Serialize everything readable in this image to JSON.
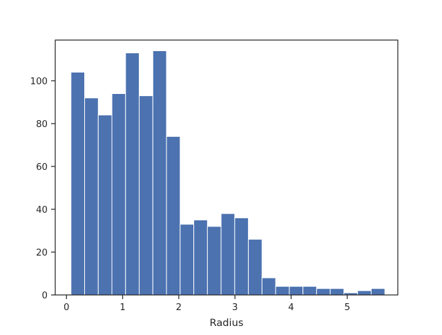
{
  "chart_data": {
    "type": "bar",
    "xlabel": "Radius",
    "ylabel": "",
    "title": "",
    "xlim": [
      -0.2,
      5.9
    ],
    "ylim": [
      0,
      119
    ],
    "grid": false,
    "bar_color": "#4c72b0",
    "bin_edges": [
      0.08,
      0.323,
      0.566,
      0.809,
      1.052,
      1.295,
      1.538,
      1.781,
      2.024,
      2.267,
      2.51,
      2.753,
      2.996,
      3.239,
      3.482,
      3.725,
      3.968,
      4.211,
      4.454,
      4.697,
      4.94,
      5.183,
      5.426,
      5.67
    ],
    "counts": [
      104,
      92,
      84,
      94,
      113,
      93,
      114,
      74,
      33,
      35,
      32,
      38,
      36,
      26,
      8,
      4,
      4,
      4,
      3,
      3,
      1,
      2,
      3
    ],
    "x_ticks": [
      0,
      1,
      2,
      3,
      4,
      5
    ],
    "x_tick_labels": [
      "0",
      "1",
      "2",
      "3",
      "4",
      "5"
    ],
    "y_ticks": [
      0,
      20,
      40,
      60,
      80,
      100
    ],
    "y_tick_labels": [
      "0",
      "20",
      "40",
      "60",
      "80",
      "100"
    ]
  }
}
